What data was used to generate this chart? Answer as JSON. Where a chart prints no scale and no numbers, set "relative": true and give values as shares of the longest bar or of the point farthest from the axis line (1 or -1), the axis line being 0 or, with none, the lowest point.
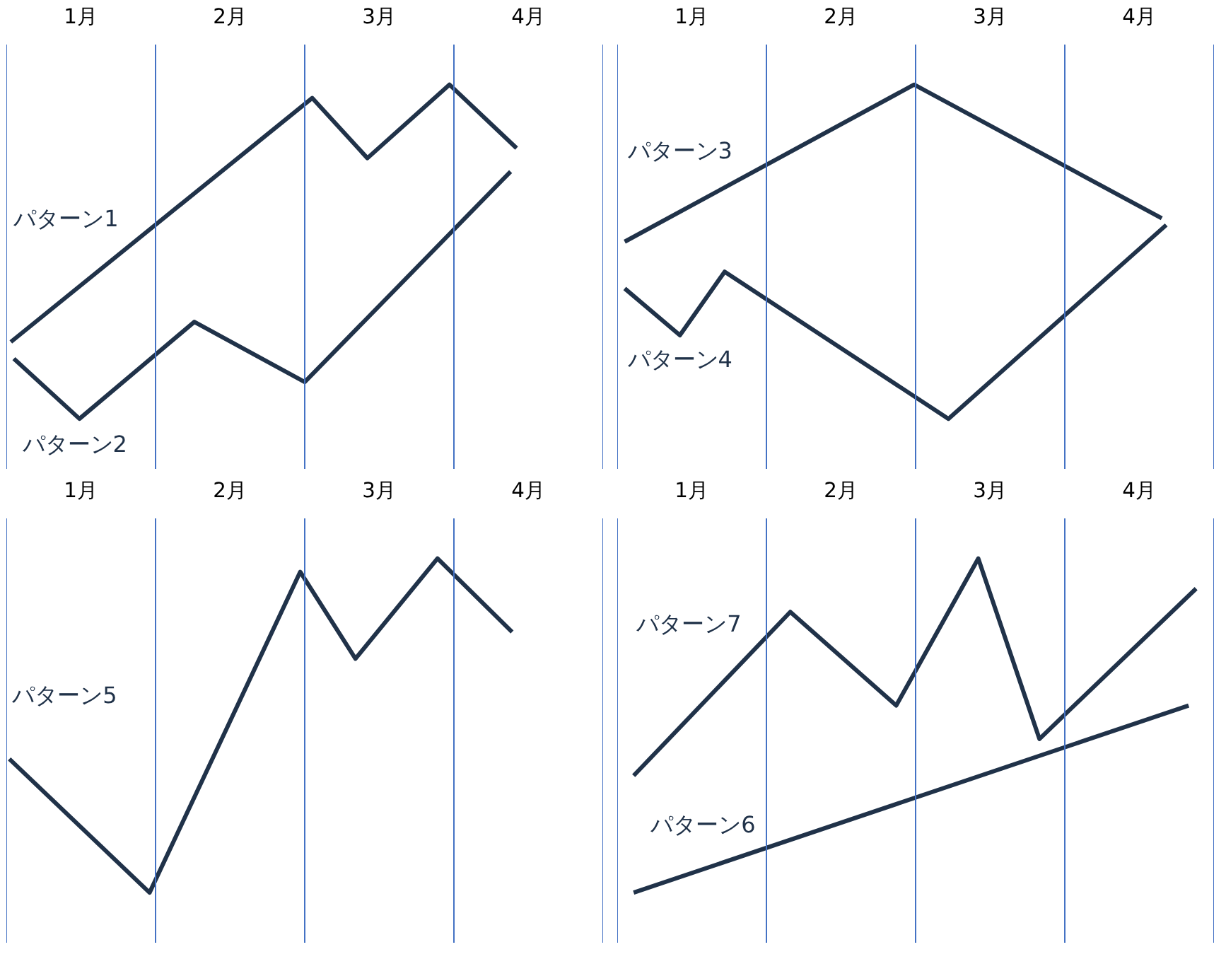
{
  "chart_data": [
    {
      "type": "line",
      "relative": true,
      "tick_labels": "x",
      "line_style": "solid",
      "xlim": [
        0,
        4
      ],
      "xticks": [
        {
          "value": 0.5,
          "label": "1月"
        },
        {
          "value": 1.5,
          "label": "2月"
        },
        {
          "value": 2.5,
          "label": "3月"
        },
        {
          "value": 3.5,
          "label": "4月"
        }
      ],
      "ref_lines": [
        {
          "axis": "x",
          "value": 0,
          "color": "#4472c4"
        },
        {
          "axis": "x",
          "value": 1,
          "color": "#4472c4"
        },
        {
          "axis": "x",
          "value": 2,
          "color": "#4472c4"
        },
        {
          "axis": "x",
          "value": 3,
          "color": "#4472c4"
        },
        {
          "axis": "x",
          "value": 4,
          "color": "#4472c4"
        }
      ],
      "series": [
        {
          "name": "パターン1",
          "color": "#203249",
          "x": [
            0.03,
            2.05,
            2.42,
            2.97,
            3.42
          ],
          "values": [
            0.23,
            0.96,
            0.78,
            1.0,
            0.81
          ]
        },
        {
          "name": "パターン2",
          "color": "#203249",
          "x": [
            0.05,
            0.49,
            1.26,
            2.0,
            3.38
          ],
          "values": [
            0.18,
            0,
            0.29,
            0.11,
            0.74
          ]
        }
      ]
    },
    {
      "type": "line",
      "relative": true,
      "tick_labels": "x",
      "line_style": "solid",
      "xlim": [
        0,
        4
      ],
      "xticks": [
        {
          "value": 0.5,
          "label": "1月"
        },
        {
          "value": 1.5,
          "label": "2月"
        },
        {
          "value": 2.5,
          "label": "3月"
        },
        {
          "value": 3.5,
          "label": "4月"
        }
      ],
      "ref_lines": [
        {
          "axis": "x",
          "value": 0,
          "color": "#4472c4"
        },
        {
          "axis": "x",
          "value": 1,
          "color": "#4472c4"
        },
        {
          "axis": "x",
          "value": 2,
          "color": "#4472c4"
        },
        {
          "axis": "x",
          "value": 3,
          "color": "#4472c4"
        },
        {
          "axis": "x",
          "value": 4,
          "color": "#4472c4"
        }
      ],
      "series": [
        {
          "name": "パターン3",
          "color": "#203249",
          "x": [
            0.05,
            1.99,
            3.65
          ],
          "values": [
            0.53,
            1.0,
            0.6
          ]
        },
        {
          "name": "パターン4",
          "color": "#203249",
          "x": [
            0.05,
            0.42,
            0.72,
            2.22,
            3.68
          ],
          "values": [
            0.39,
            0.25,
            0.44,
            0,
            0.58
          ]
        }
      ]
    },
    {
      "type": "line",
      "relative": true,
      "tick_labels": "x",
      "line_style": "solid",
      "xlim": [
        0,
        4
      ],
      "xticks": [
        {
          "value": 0.5,
          "label": "1月"
        },
        {
          "value": 1.5,
          "label": "2月"
        },
        {
          "value": 2.5,
          "label": "3月"
        },
        {
          "value": 3.5,
          "label": "4月"
        }
      ],
      "ref_lines": [
        {
          "axis": "x",
          "value": 0,
          "color": "#4472c4"
        },
        {
          "axis": "x",
          "value": 1,
          "color": "#4472c4"
        },
        {
          "axis": "x",
          "value": 2,
          "color": "#4472c4"
        },
        {
          "axis": "x",
          "value": 3,
          "color": "#4472c4"
        },
        {
          "axis": "x",
          "value": 4,
          "color": "#4472c4"
        }
      ],
      "series": [
        {
          "name": "パターン5",
          "color": "#203249",
          "x": [
            0.02,
            0.96,
            1.97,
            2.34,
            2.89,
            3.39
          ],
          "values": [
            0.4,
            0,
            0.96,
            0.7,
            1.0,
            0.78
          ]
        }
      ]
    },
    {
      "type": "line",
      "relative": true,
      "tick_labels": "x",
      "line_style": "solid",
      "xlim": [
        0,
        4
      ],
      "xticks": [
        {
          "value": 0.5,
          "label": "1月"
        },
        {
          "value": 1.5,
          "label": "2月"
        },
        {
          "value": 2.5,
          "label": "3月"
        },
        {
          "value": 3.5,
          "label": "4月"
        }
      ],
      "ref_lines": [
        {
          "axis": "x",
          "value": 0,
          "color": "#4472c4"
        },
        {
          "axis": "x",
          "value": 1,
          "color": "#4472c4"
        },
        {
          "axis": "x",
          "value": 2,
          "color": "#4472c4"
        },
        {
          "axis": "x",
          "value": 3,
          "color": "#4472c4"
        },
        {
          "axis": "x",
          "value": 4,
          "color": "#4472c4"
        }
      ],
      "series": [
        {
          "name": "パターン7",
          "color": "#203249",
          "x": [
            0.11,
            1.16,
            1.87,
            2.42,
            2.83,
            3.88
          ],
          "values": [
            0.35,
            0.84,
            0.56,
            1.0,
            0.46,
            0.91
          ]
        },
        {
          "name": "パターン6",
          "color": "#203249",
          "x": [
            0.11,
            3.83
          ],
          "values": [
            0,
            0.56
          ]
        }
      ]
    }
  ]
}
